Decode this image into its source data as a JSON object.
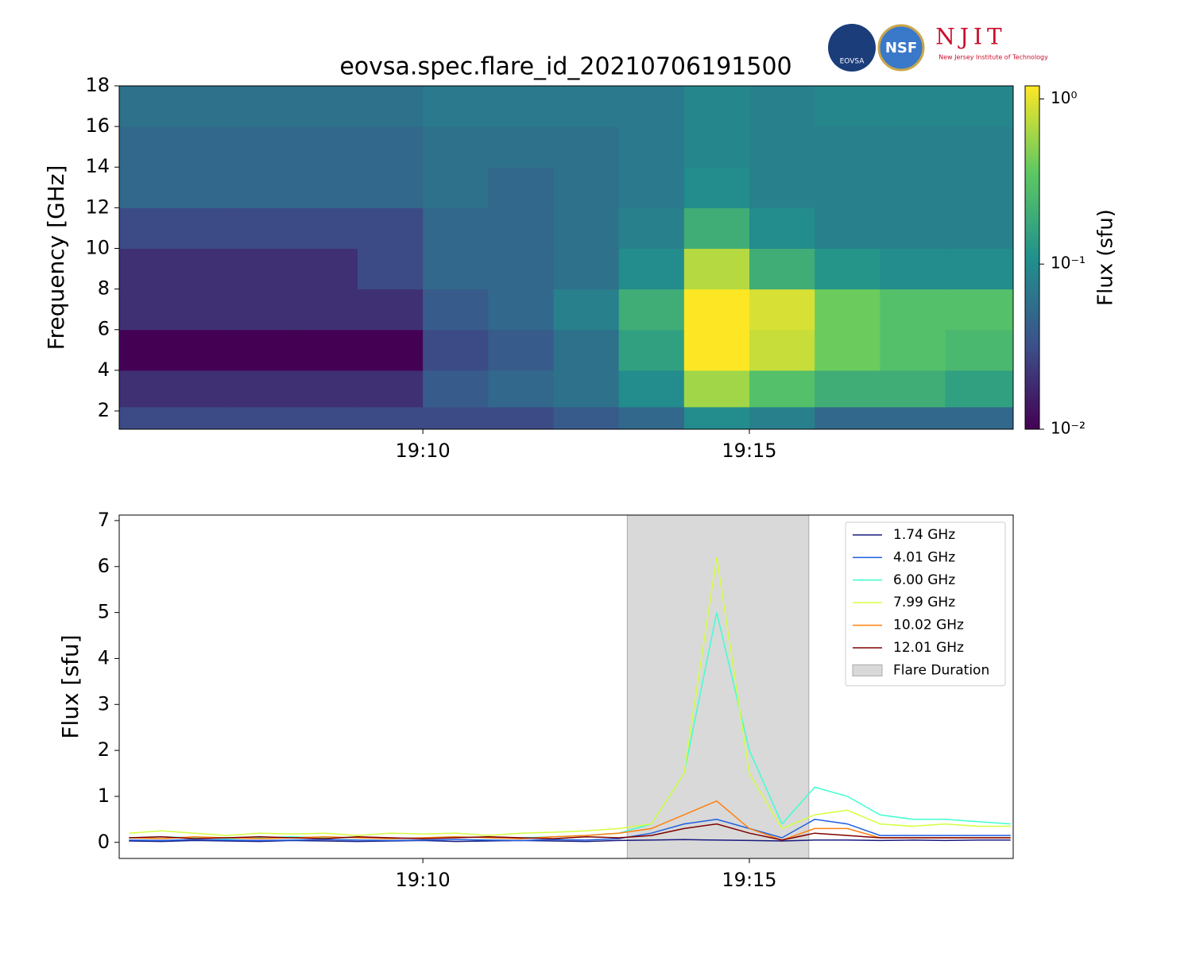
{
  "logos": [
    "EOVSA",
    "NSF",
    "NJIT",
    "New Jersey Institute of Technology"
  ],
  "chart_data": [
    {
      "type": "heatmap",
      "title": "eovsa.spec.flare_id_20210706191500",
      "y_label": "Frequency [GHz]",
      "colorbar_label": "Flux  (sfu)",
      "colormap": "viridis",
      "color_scale": "log",
      "xlim": [
        1145.35,
        1159.04
      ],
      "xticks": [
        {
          "value": 1150,
          "label": "19:10"
        },
        {
          "value": 1155,
          "label": "19:15"
        }
      ],
      "ylim": [
        1.1,
        18
      ],
      "yticks": [
        2,
        4,
        6,
        8,
        10,
        12,
        14,
        16,
        18
      ],
      "zlim": [
        0.01,
        1.2
      ],
      "zticks": [
        {
          "value": 1,
          "label": "10⁰"
        },
        {
          "value": 0.1,
          "label": "10⁻¹"
        },
        {
          "value": 0.01,
          "label": "10⁻²"
        }
      ],
      "x_edges": [
        1145.35,
        1146,
        1147,
        1148,
        1149,
        1150,
        1151,
        1152,
        1153,
        1154,
        1155,
        1156,
        1157,
        1158,
        1159,
        1159.04
      ],
      "y_edges": [
        1.1,
        2.2,
        4,
        6,
        8,
        10,
        12,
        14,
        16,
        18
      ],
      "z": [
        [
          0.03,
          0.03,
          0.03,
          0.03,
          0.03,
          0.03,
          0.03,
          0.04,
          0.05,
          0.1,
          0.08,
          0.05,
          0.05,
          0.05,
          0.05
        ],
        [
          0.02,
          0.02,
          0.02,
          0.02,
          0.02,
          0.04,
          0.05,
          0.06,
          0.1,
          0.6,
          0.3,
          0.2,
          0.2,
          0.15,
          0.15
        ],
        [
          0.01,
          0.01,
          0.01,
          0.01,
          0.01,
          0.03,
          0.04,
          0.06,
          0.15,
          1.2,
          0.8,
          0.4,
          0.3,
          0.25,
          0.25
        ],
        [
          0.02,
          0.02,
          0.02,
          0.02,
          0.02,
          0.04,
          0.05,
          0.08,
          0.2,
          1.2,
          0.9,
          0.4,
          0.3,
          0.3,
          0.3
        ],
        [
          0.02,
          0.02,
          0.02,
          0.02,
          0.03,
          0.05,
          0.05,
          0.06,
          0.1,
          0.7,
          0.2,
          0.12,
          0.1,
          0.1,
          0.1
        ],
        [
          0.03,
          0.03,
          0.03,
          0.03,
          0.03,
          0.05,
          0.05,
          0.06,
          0.08,
          0.2,
          0.1,
          0.08,
          0.08,
          0.08,
          0.08
        ],
        [
          0.05,
          0.05,
          0.05,
          0.05,
          0.05,
          0.06,
          0.05,
          0.06,
          0.07,
          0.1,
          0.08,
          0.08,
          0.08,
          0.08,
          0.08
        ],
        [
          0.05,
          0.05,
          0.05,
          0.05,
          0.05,
          0.06,
          0.06,
          0.06,
          0.07,
          0.09,
          0.08,
          0.08,
          0.08,
          0.08,
          0.08
        ],
        [
          0.06,
          0.06,
          0.06,
          0.06,
          0.06,
          0.07,
          0.07,
          0.07,
          0.07,
          0.09,
          0.08,
          0.09,
          0.09,
          0.09,
          0.09
        ]
      ]
    },
    {
      "type": "line",
      "y_label": "Flux [sfu]",
      "legend": "upper right",
      "xlim": [
        1145.35,
        1159.04
      ],
      "xticks": [
        {
          "value": 1150,
          "label": "19:10"
        },
        {
          "value": 1155,
          "label": "19:15"
        }
      ],
      "ylim": [
        -0.35,
        7.12
      ],
      "yticks": [
        0,
        1,
        2,
        3,
        4,
        5,
        6,
        7
      ],
      "x": [
        1145.5,
        1146,
        1146.5,
        1147,
        1147.5,
        1148,
        1148.5,
        1149,
        1149.5,
        1150,
        1150.5,
        1151,
        1151.5,
        1152,
        1152.5,
        1153,
        1153.5,
        1154,
        1154.5,
        1155,
        1155.5,
        1156,
        1156.5,
        1157,
        1157.5,
        1158,
        1158.5,
        1159
      ],
      "series": [
        {
          "name": "1.74 GHz",
          "color": "#1a1a80",
          "values": [
            0.03,
            0.02,
            0.04,
            0.03,
            0.02,
            0.04,
            0.03,
            0.02,
            0.03,
            0.04,
            0.02,
            0.03,
            0.04,
            0.03,
            0.02,
            0.04,
            0.05,
            0.06,
            0.05,
            0.04,
            0.03,
            0.05,
            0.05,
            0.04,
            0.05,
            0.04,
            0.05,
            0.05
          ]
        },
        {
          "name": "4.01 GHz",
          "color": "#1f5fe0",
          "values": [
            0.05,
            0.04,
            0.06,
            0.05,
            0.04,
            0.05,
            0.06,
            0.05,
            0.04,
            0.05,
            0.06,
            0.05,
            0.04,
            0.06,
            0.05,
            0.08,
            0.2,
            0.4,
            0.5,
            0.3,
            0.1,
            0.5,
            0.4,
            0.15,
            0.15,
            0.15,
            0.15,
            0.15
          ]
        },
        {
          "name": "6.00 GHz",
          "color": "#40ffd0",
          "values": [
            0.1,
            0.12,
            0.1,
            0.08,
            0.1,
            0.12,
            0.1,
            0.1,
            0.08,
            0.1,
            0.12,
            0.1,
            0.1,
            0.12,
            0.15,
            0.2,
            0.4,
            1.5,
            5.0,
            2.0,
            0.4,
            1.2,
            1.0,
            0.6,
            0.5,
            0.5,
            0.45,
            0.4
          ]
        },
        {
          "name": "7.99 GHz",
          "color": "#d4ff40",
          "values": [
            0.2,
            0.25,
            0.2,
            0.15,
            0.2,
            0.18,
            0.2,
            0.15,
            0.2,
            0.18,
            0.2,
            0.15,
            0.2,
            0.22,
            0.25,
            0.3,
            0.4,
            1.5,
            6.2,
            1.5,
            0.3,
            0.6,
            0.7,
            0.4,
            0.35,
            0.4,
            0.35,
            0.35
          ]
        },
        {
          "name": "10.02 GHz",
          "color": "#ff7f0e",
          "values": [
            0.1,
            0.08,
            0.12,
            0.1,
            0.08,
            0.1,
            0.12,
            0.1,
            0.08,
            0.1,
            0.12,
            0.1,
            0.08,
            0.12,
            0.15,
            0.2,
            0.3,
            0.6,
            0.9,
            0.3,
            0.05,
            0.3,
            0.3,
            0.1,
            0.1,
            0.1,
            0.1,
            0.1
          ]
        },
        {
          "name": "12.01 GHz",
          "color": "#7f0000",
          "values": [
            0.1,
            0.12,
            0.08,
            0.1,
            0.12,
            0.1,
            0.08,
            0.12,
            0.1,
            0.08,
            0.1,
            0.12,
            0.1,
            0.08,
            0.12,
            0.1,
            0.15,
            0.3,
            0.4,
            0.2,
            0.05,
            0.2,
            0.15,
            0.1,
            0.1,
            0.1,
            0.1,
            0.1
          ]
        }
      ],
      "spans": [
        {
          "name": "Flare Duration",
          "start": 1153.13,
          "end": 1155.91,
          "color": "#d9d9d9"
        }
      ]
    }
  ]
}
